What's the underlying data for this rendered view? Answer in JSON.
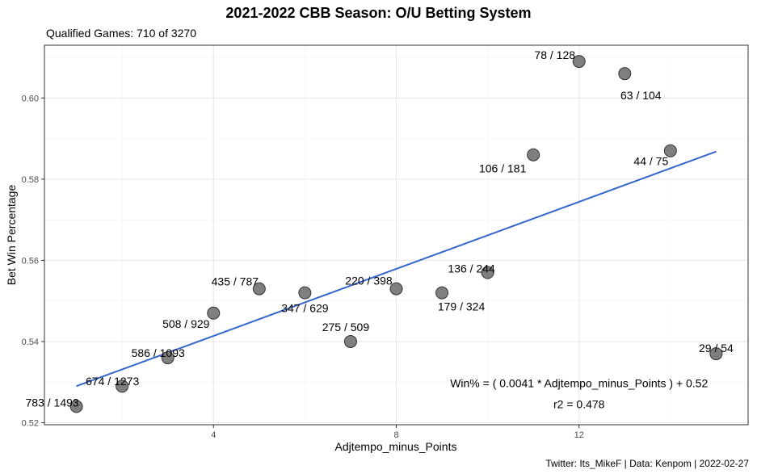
{
  "chart_data": {
    "type": "scatter",
    "title": "2021-2022 CBB Season: O/U Betting System",
    "subtitle": "Qualified Games: 710 of 3270",
    "caption": "Twitter: Its_MikeF | Data: Kenpom | 2022-02-27",
    "xlabel": "Adjtempo_minus_Points",
    "ylabel": "Bet Win Percentage",
    "xlim": [
      0.3,
      15.7
    ],
    "ylim": [
      0.5195,
      0.613
    ],
    "x_ticks": [
      4,
      8,
      12
    ],
    "x_tick_labels": [
      "4",
      "8",
      "12"
    ],
    "y_ticks": [
      0.52,
      0.54,
      0.56,
      0.58,
      0.6
    ],
    "y_tick_labels": [
      "0.52",
      "0.54",
      "0.56",
      "0.58",
      "0.60"
    ],
    "grid": true,
    "point_color": "#7f7f7f",
    "trend_color": "#3366cc",
    "points": [
      {
        "x": 1,
        "y": 0.524,
        "label": "783 / 1493"
      },
      {
        "x": 2,
        "y": 0.529,
        "label": "674 / 1273"
      },
      {
        "x": 3,
        "y": 0.536,
        "label": "586 / 1093"
      },
      {
        "x": 4,
        "y": 0.547,
        "label": "508 / 929"
      },
      {
        "x": 5,
        "y": 0.553,
        "label": "435 / 787"
      },
      {
        "x": 6,
        "y": 0.552,
        "label": "347 / 629"
      },
      {
        "x": 7,
        "y": 0.54,
        "label": "275 / 509"
      },
      {
        "x": 8,
        "y": 0.553,
        "label": "220 / 398"
      },
      {
        "x": 9,
        "y": 0.552,
        "label": "179 / 324"
      },
      {
        "x": 10,
        "y": 0.557,
        "label": "136 / 244"
      },
      {
        "x": 11,
        "y": 0.586,
        "label": "106 / 181"
      },
      {
        "x": 12,
        "y": 0.609,
        "label": "78 / 128"
      },
      {
        "x": 13,
        "y": 0.606,
        "label": "63 / 104"
      },
      {
        "x": 14,
        "y": 0.587,
        "label": "44 / 75"
      },
      {
        "x": 15,
        "y": 0.537,
        "label": "29 / 54"
      }
    ],
    "trendline": {
      "x": [
        1,
        15
      ],
      "y": [
        0.529,
        0.5868
      ]
    },
    "annotations": [
      {
        "text": "Win% = ( 0.0041 * Adjtempo_minus_Points ) + 0.52",
        "x": 12,
        "y": 0.5288
      },
      {
        "text": "r2 = 0.478",
        "x": 12,
        "y": 0.5236
      }
    ]
  }
}
